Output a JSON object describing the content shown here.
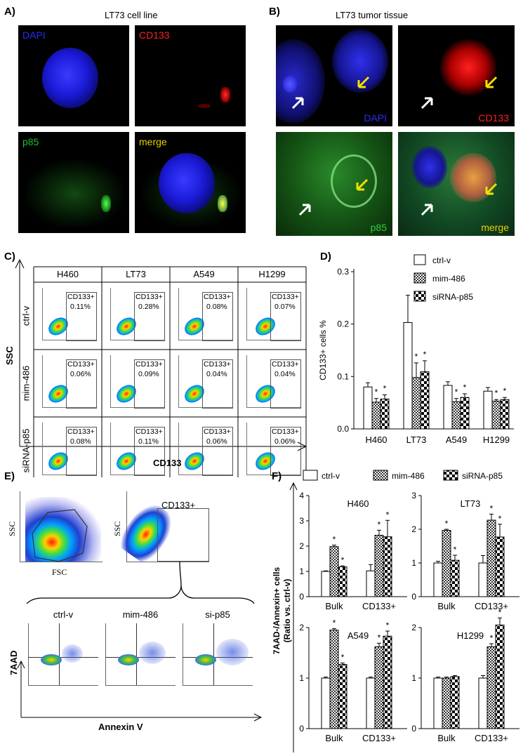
{
  "panelA": {
    "letter": "A)",
    "title": "LT73 cell line",
    "tiles": [
      "DAPI",
      "CD133",
      "p85",
      "merge"
    ]
  },
  "panelB": {
    "letter": "B)",
    "title": "LT73 tumor tissue",
    "tiles": [
      "DAPI",
      "CD133",
      "p85",
      "merge"
    ]
  },
  "panelC": {
    "letter": "C)",
    "cols": [
      "H460",
      "LT73",
      "A549",
      "H1299"
    ],
    "rows": [
      "ctrl-v",
      "mim-486",
      "siRNA-p85"
    ],
    "gate_label": "CD133+",
    "values": [
      [
        "0.11%",
        "0.28%",
        "0.08%",
        "0.07%"
      ],
      [
        "0.06%",
        "0.09%",
        "0.04%",
        "0.04%"
      ],
      [
        "0.08%",
        "0.11%",
        "0.06%",
        "0.06%"
      ]
    ],
    "y_axis": "SSC",
    "x_axis": "CD133"
  },
  "panelE": {
    "letter": "E)",
    "ssc1": "SSC",
    "fsc": "FSC",
    "ssc2": "SSC",
    "gate": "CD133+",
    "conditions": [
      "ctrl-v",
      "mim-486",
      "si-p85"
    ],
    "y_axis": "7AAD",
    "x_axis": "Annexin V"
  },
  "panelF": {
    "letter": "F)",
    "ylabel_line1": "7AAD-/Annexin+ cells",
    "ylabel_line2": "(Ratio vs. ctrl-v)"
  },
  "colors": {
    "dapi": "#1a1ad6",
    "cd133": "#e01010",
    "p85": "#1faa2a",
    "merge": "#e6d000",
    "arrow_yellow": "#f0e000"
  },
  "chart_data": [
    {
      "id": "D",
      "letter": "D)",
      "type": "bar",
      "categories": [
        "H460",
        "LT73",
        "A549",
        "H1299"
      ],
      "series": [
        {
          "name": "ctrl-v",
          "values": [
            0.08,
            0.203,
            0.083,
            0.072
          ],
          "errors": [
            0.008,
            0.052,
            0.007,
            0.007
          ]
        },
        {
          "name": "mim-486",
          "values": [
            0.051,
            0.098,
            0.052,
            0.053
          ],
          "errors": [
            0.007,
            0.028,
            0.006,
            0.003
          ]
        },
        {
          "name": "siRNA-p85",
          "values": [
            0.057,
            0.109,
            0.06,
            0.056
          ],
          "errors": [
            0.008,
            0.021,
            0.007,
            0.004
          ]
        }
      ],
      "significance": [
        [
          "",
          "*",
          "*"
        ],
        [
          "",
          "*",
          "*"
        ],
        [
          "",
          "*",
          "*"
        ],
        [
          "",
          "*",
          "*"
        ]
      ],
      "ylabel": "CD133+ cells %",
      "xlabel": "",
      "ylim": [
        0,
        0.3
      ],
      "yticks": [
        0.0,
        0.1,
        0.2,
        0.3
      ],
      "ytick_labels": [
        "0.0",
        "0.1",
        "0.2",
        "0.3"
      ],
      "legend": "top-right"
    },
    {
      "id": "F",
      "type": "bar",
      "legend_entries": [
        "ctrl-v",
        "mim-486",
        "siRNA-p85"
      ],
      "legend": "top",
      "subplots": [
        {
          "title": "H460",
          "categories": [
            "Bulk",
            "CD133+"
          ],
          "ylim": [
            0,
            4
          ],
          "yticks": [
            0,
            1,
            2,
            3,
            4
          ],
          "series": [
            {
              "name": "ctrl-v",
              "values": [
                1.0,
                1.02
              ],
              "errors": [
                0.02,
                0.25
              ]
            },
            {
              "name": "mim-486",
              "values": [
                1.98,
                2.43
              ],
              "errors": [
                0.06,
                0.2
              ]
            },
            {
              "name": "siRNA-p85",
              "values": [
                1.18,
                2.37
              ],
              "errors": [
                0.04,
                0.65
              ]
            }
          ],
          "significance": [
            [
              "",
              "*",
              "*"
            ],
            [
              "",
              "*",
              "*"
            ]
          ]
        },
        {
          "title": "LT73",
          "categories": [
            "Bulk",
            "CD133+"
          ],
          "ylim": [
            0,
            3
          ],
          "yticks": [
            0,
            1,
            2,
            3
          ],
          "series": [
            {
              "name": "ctrl-v",
              "values": [
                1.0,
                1.0
              ],
              "errors": [
                0.05,
                0.22
              ]
            },
            {
              "name": "mim-486",
              "values": [
                1.97,
                2.27
              ],
              "errors": [
                0.03,
                0.18
              ]
            },
            {
              "name": "siRNA-p85",
              "values": [
                1.08,
                1.77
              ],
              "errors": [
                0.15,
                0.38
              ]
            }
          ],
          "significance": [
            [
              "",
              "*",
              "*"
            ],
            [
              "",
              "*",
              "*"
            ]
          ]
        },
        {
          "title": "A549",
          "categories": [
            "Bulk",
            "CD133+"
          ],
          "ylim": [
            0,
            2
          ],
          "yticks": [
            0,
            1,
            2
          ],
          "series": [
            {
              "name": "ctrl-v",
              "values": [
                1.0,
                1.0
              ],
              "errors": [
                0.02,
                0.02
              ]
            },
            {
              "name": "mim-486",
              "values": [
                1.95,
                1.62
              ],
              "errors": [
                0.03,
                0.07
              ]
            },
            {
              "name": "siRNA-p85",
              "values": [
                1.27,
                1.83
              ],
              "errors": [
                0.03,
                0.1
              ]
            }
          ],
          "significance": [
            [
              "",
              "*",
              "*"
            ],
            [
              "",
              "*",
              "*"
            ]
          ]
        },
        {
          "title": "H1299",
          "categories": [
            "Bulk",
            "CD133+"
          ],
          "ylim": [
            0,
            2
          ],
          "yticks": [
            0,
            1,
            2
          ],
          "series": [
            {
              "name": "ctrl-v",
              "values": [
                1.0,
                1.0
              ],
              "errors": [
                0.02,
                0.05
              ]
            },
            {
              "name": "mim-486",
              "values": [
                1.0,
                1.62
              ],
              "errors": [
                0.02,
                0.06
              ]
            },
            {
              "name": "siRNA-p85",
              "values": [
                1.03,
                2.05
              ],
              "errors": [
                0.02,
                0.14
              ]
            }
          ],
          "significance": [
            [
              "",
              "",
              ""
            ],
            [
              "",
              "*",
              "*"
            ]
          ]
        }
      ]
    }
  ]
}
